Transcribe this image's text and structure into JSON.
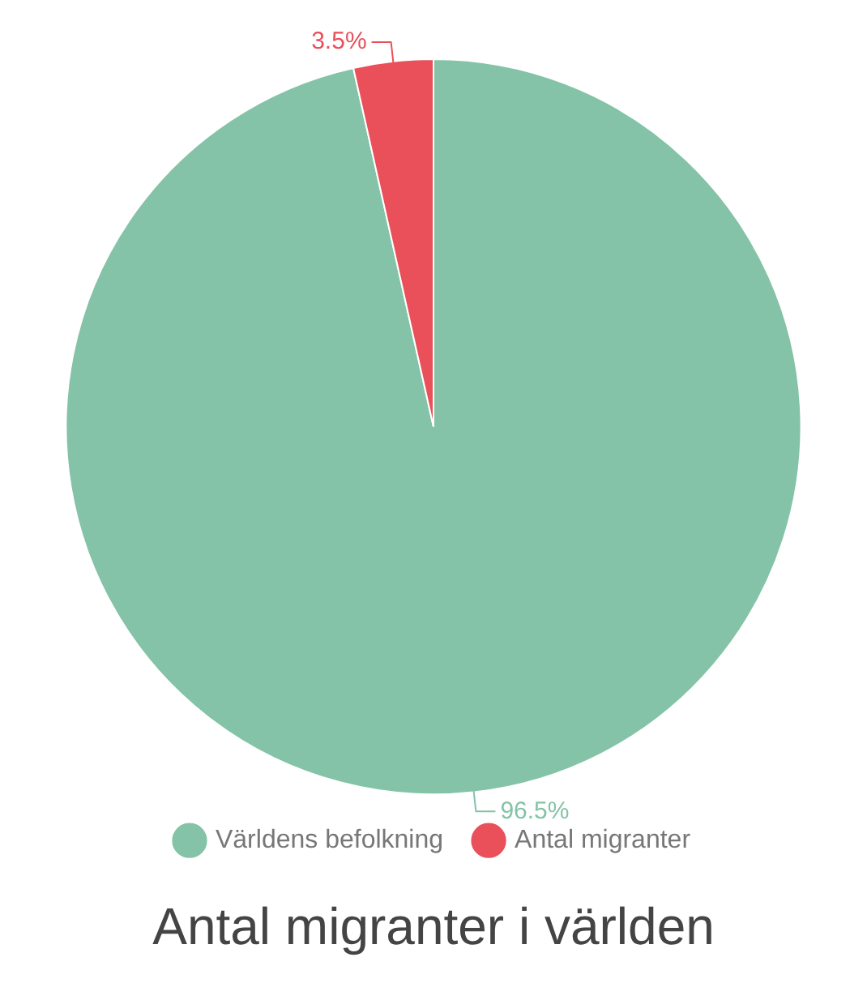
{
  "chart_data": {
    "type": "pie",
    "title": "Antal migranter i världen",
    "categories": [
      "Världens befolkning",
      "Antal migranter"
    ],
    "values": [
      96.5,
      3.5
    ],
    "colors": [
      "#84c3a7",
      "#e9505a"
    ],
    "value_labels": [
      "96.5%",
      "3.5%"
    ],
    "legend": "bottom"
  }
}
